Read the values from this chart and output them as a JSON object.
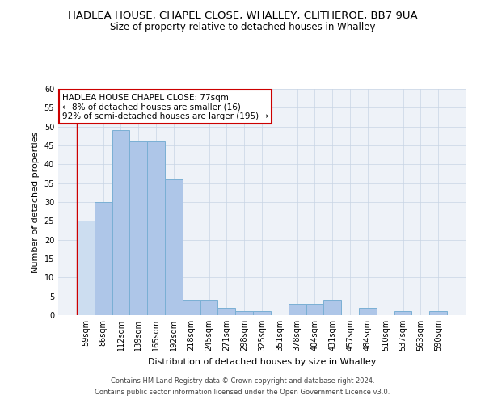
{
  "title": "HADLEA HOUSE, CHAPEL CLOSE, WHALLEY, CLITHEROE, BB7 9UA",
  "subtitle": "Size of property relative to detached houses in Whalley",
  "xlabel": "Distribution of detached houses by size in Whalley",
  "ylabel": "Number of detached properties",
  "categories": [
    "59sqm",
    "86sqm",
    "112sqm",
    "139sqm",
    "165sqm",
    "192sqm",
    "218sqm",
    "245sqm",
    "271sqm",
    "298sqm",
    "325sqm",
    "351sqm",
    "378sqm",
    "404sqm",
    "431sqm",
    "457sqm",
    "484sqm",
    "510sqm",
    "537sqm",
    "563sqm",
    "590sqm"
  ],
  "values": [
    25,
    30,
    49,
    46,
    46,
    36,
    4,
    4,
    2,
    1,
    1,
    0,
    3,
    3,
    4,
    0,
    2,
    0,
    1,
    0,
    1
  ],
  "bar_color": "#aec6e8",
  "bar_edge_color": "#7aafd4",
  "highlight_bar_index": 0,
  "highlight_bar_color": "#ccddf0",
  "highlight_bar_edge_color": "#cc0000",
  "vline_color": "#cc0000",
  "ylim": [
    0,
    60
  ],
  "yticks": [
    0,
    5,
    10,
    15,
    20,
    25,
    30,
    35,
    40,
    45,
    50,
    55,
    60
  ],
  "annotation_text": "HADLEA HOUSE CHAPEL CLOSE: 77sqm\n← 8% of detached houses are smaller (16)\n92% of semi-detached houses are larger (195) →",
  "annotation_box_color": "#ffffff",
  "annotation_box_edge_color": "#cc0000",
  "footer_line1": "Contains HM Land Registry data © Crown copyright and database right 2024.",
  "footer_line2": "Contains public sector information licensed under the Open Government Licence v3.0.",
  "bg_color": "#eef2f8",
  "title_fontsize": 9.5,
  "subtitle_fontsize": 8.5,
  "ylabel_fontsize": 8,
  "xlabel_fontsize": 8,
  "tick_fontsize": 7,
  "annotation_fontsize": 7.5,
  "footer_fontsize": 6
}
